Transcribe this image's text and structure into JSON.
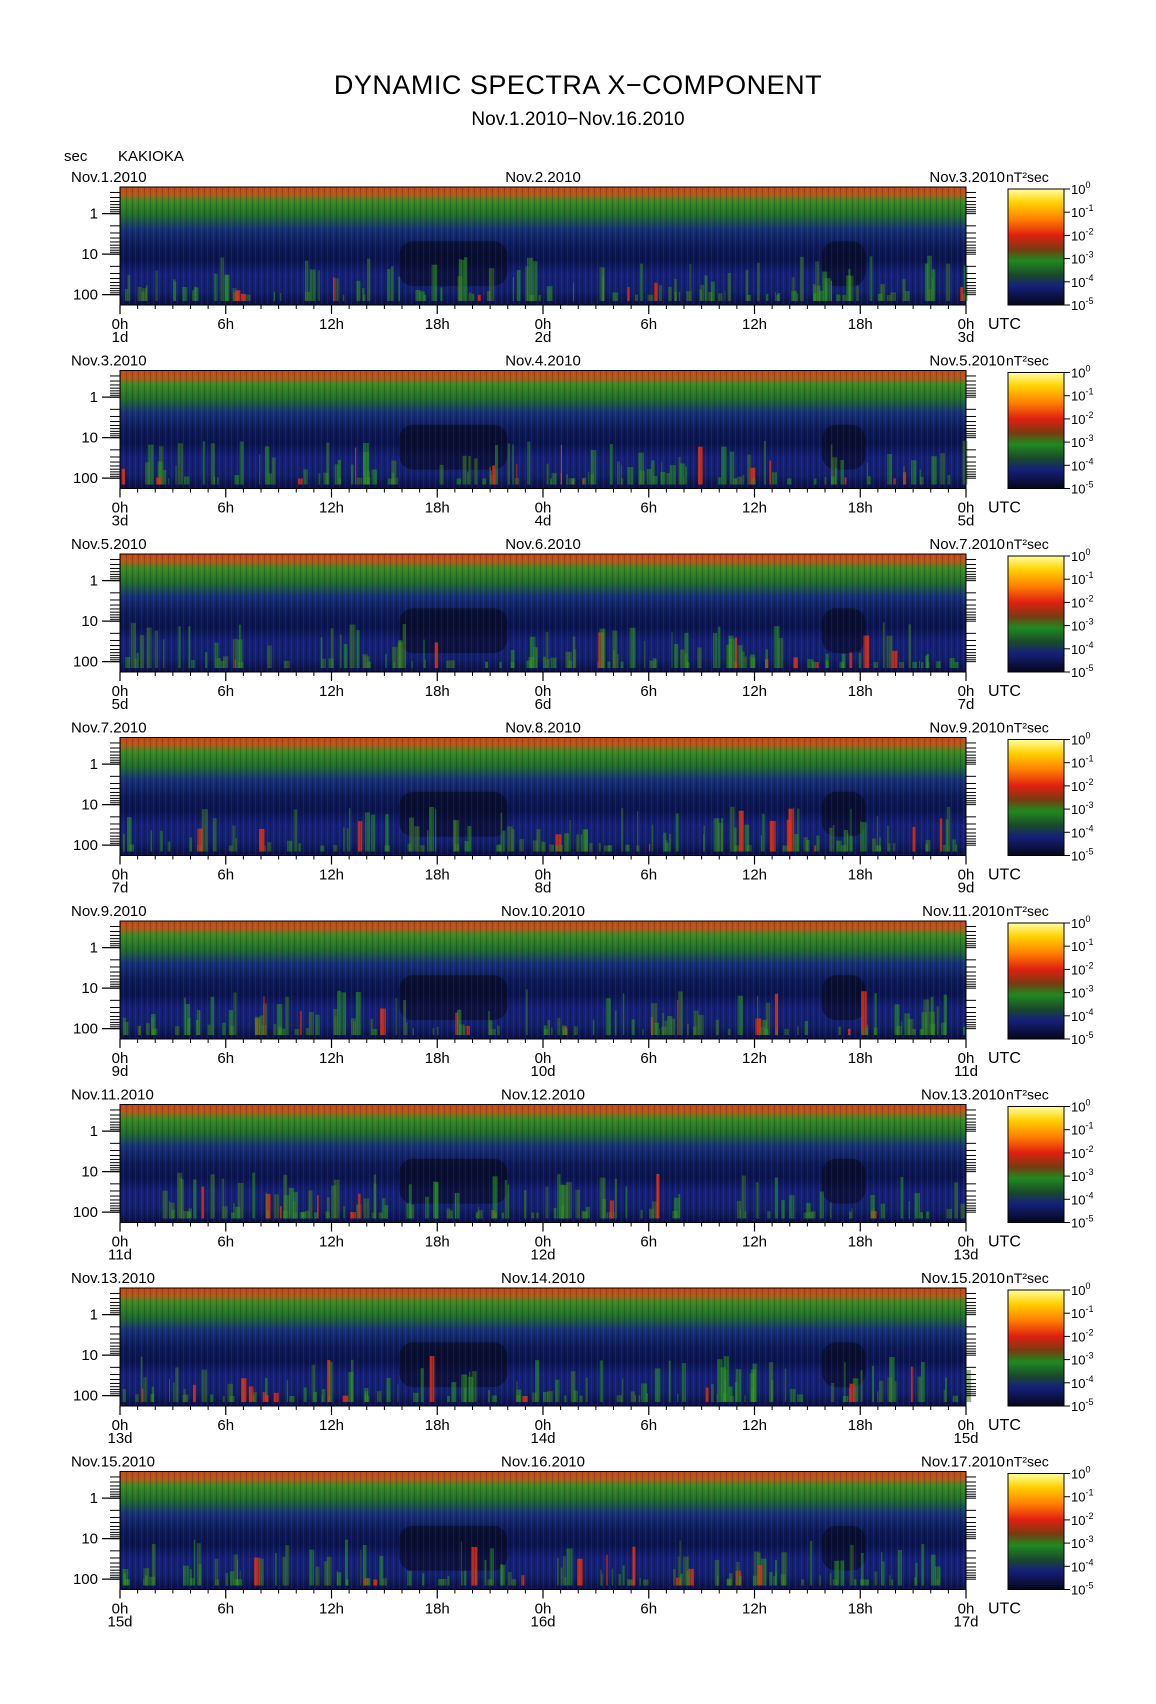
{
  "figure": {
    "title": "DYNAMIC SPECTRA X−COMPONENT",
    "subtitle": "Nov.1.2010−Nov.16.2010",
    "y_unit": "sec",
    "station": "KAKIOKA",
    "x_unit_label": "UTC",
    "colorbar_unit": "nT²sec"
  },
  "colors": {
    "background": "#ffffff",
    "spectrum_low": "#06061a",
    "spectrum_blue": "#14207a",
    "spectrum_green": "#1f8a1f",
    "spectrum_red": "#e02010",
    "spectrum_high": "#ffe000"
  },
  "chart_data": {
    "type": "heatmap",
    "y_axis": {
      "label": "sec",
      "ticks": [
        1,
        10,
        100
      ],
      "tick_labels": [
        "1",
        "10",
        "100"
      ],
      "scale": "log",
      "inverted": true,
      "range": [
        0.22,
        180
      ]
    },
    "x_axis": {
      "label": "UTC",
      "range_hours": [
        0,
        48
      ],
      "hour_tick_labels": [
        "0h",
        "6h",
        "12h",
        "18h",
        "0h",
        "6h",
        "12h",
        "18h",
        "0h"
      ]
    },
    "colorbar": {
      "unit": "nT²sec",
      "scale": "log",
      "range": [
        1e-05,
        1
      ],
      "tick_mantissa": "10",
      "tick_exponents": [
        "0",
        "-1",
        "-2",
        "-3",
        "-4",
        "-5"
      ],
      "color_stops": [
        "#ffffa0",
        "#ffd000",
        "#ff8000",
        "#e02010",
        "#1f8a1f",
        "#14207a",
        "#06061a"
      ]
    },
    "panels": [
      {
        "date_left": "Nov.1.2010",
        "date_mid": "Nov.2.2010",
        "date_right": "Nov.3.2010",
        "day_labels": [
          "1d",
          "2d",
          "3d"
        ]
      },
      {
        "date_left": "Nov.3.2010",
        "date_mid": "Nov.4.2010",
        "date_right": "Nov.5.2010",
        "day_labels": [
          "3d",
          "4d",
          "5d"
        ]
      },
      {
        "date_left": "Nov.5.2010",
        "date_mid": "Nov.6.2010",
        "date_right": "Nov.7.2010",
        "day_labels": [
          "5d",
          "6d",
          "7d"
        ]
      },
      {
        "date_left": "Nov.7.2010",
        "date_mid": "Nov.8.2010",
        "date_right": "Nov.9.2010",
        "day_labels": [
          "7d",
          "8d",
          "9d"
        ]
      },
      {
        "date_left": "Nov.9.2010",
        "date_mid": "Nov.10.2010",
        "date_right": "Nov.11.2010",
        "day_labels": [
          "9d",
          "10d",
          "11d"
        ]
      },
      {
        "date_left": "Nov.11.2010",
        "date_mid": "Nov.12.2010",
        "date_right": "Nov.13.2010",
        "day_labels": [
          "11d",
          "12d",
          "13d"
        ]
      },
      {
        "date_left": "Nov.13.2010",
        "date_mid": "Nov.14.2010",
        "date_right": "Nov.15.2010",
        "day_labels": [
          "13d",
          "14d",
          "15d"
        ]
      },
      {
        "date_left": "Nov.15.2010",
        "date_mid": "Nov.16.2010",
        "date_right": "Nov.17.2010",
        "day_labels": [
          "15d",
          "16d",
          "17d"
        ]
      }
    ]
  }
}
